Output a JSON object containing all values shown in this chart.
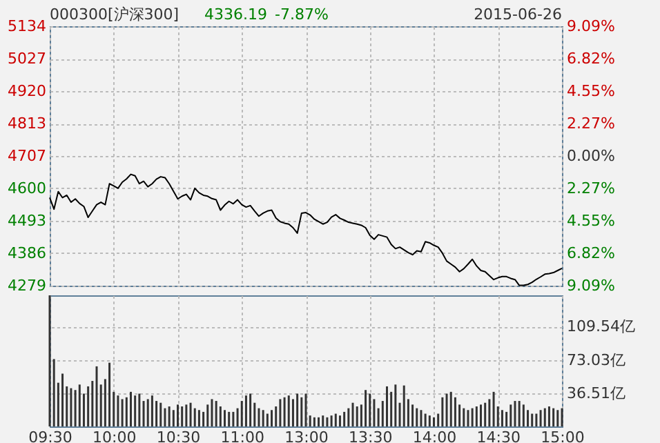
{
  "chart_data": [
    {
      "type": "line",
      "title": "000300[沪深300]",
      "annotations": [
        "4336.19",
        "-7.87%",
        "2015-06-26"
      ],
      "categories": [
        null,
        null,
        null,
        null,
        null,
        null,
        null,
        null,
        null,
        null,
        null,
        null,
        null,
        null,
        null,
        null,
        null,
        null,
        null,
        null,
        null,
        null,
        null,
        null,
        null,
        null,
        null,
        null,
        null,
        null,
        null,
        null,
        null,
        null,
        null,
        null,
        null,
        null,
        null,
        null,
        null,
        null,
        null,
        null,
        null,
        null,
        null,
        null,
        null,
        null,
        null,
        null,
        null,
        null,
        null,
        null,
        null,
        null,
        null,
        null,
        null,
        null,
        null,
        null,
        null,
        null,
        null,
        null,
        null,
        null,
        null,
        null,
        null,
        null,
        null,
        null,
        null,
        null,
        null,
        null,
        null,
        null,
        null,
        null,
        null,
        null,
        null,
        null,
        null,
        null,
        null,
        null,
        null,
        null,
        null,
        null,
        null,
        null,
        null,
        null,
        null,
        null,
        null,
        null,
        null,
        null,
        null,
        null,
        null,
        null,
        null,
        null,
        null,
        null,
        null,
        null,
        null,
        null,
        null,
        null,
        null
      ],
      "series": [
        {
          "color": "#000000",
          "values": [
            4569,
            4531,
            4589,
            4569,
            4577,
            4554,
            4565,
            4550,
            4540,
            4504,
            4525,
            4546,
            4554,
            4546,
            4615,
            4608,
            4600,
            4620,
            4631,
            4646,
            4641,
            4615,
            4623,
            4605,
            4615,
            4630,
            4638,
            4635,
            4615,
            4590,
            4565,
            4574,
            4580,
            4562,
            4600,
            4585,
            4577,
            4574,
            4566,
            4562,
            4528,
            4545,
            4557,
            4549,
            4562,
            4546,
            4538,
            4543,
            4525,
            4508,
            4518,
            4525,
            4528,
            4502,
            4490,
            4485,
            4482,
            4470,
            4452,
            4518,
            4520,
            4512,
            4498,
            4490,
            4482,
            4488,
            4505,
            4513,
            4501,
            4495,
            4488,
            4485,
            4482,
            4478,
            4470,
            4445,
            4432,
            4447,
            4443,
            4439,
            4415,
            4401,
            4406,
            4397,
            4388,
            4381,
            4394,
            4391,
            4424,
            4420,
            4412,
            4406,
            4386,
            4360,
            4350,
            4340,
            4325,
            4335,
            4350,
            4366,
            4344,
            4329,
            4325,
            4312,
            4299,
            4305,
            4309,
            4309,
            4303,
            4299,
            4280,
            4280,
            4283,
            4290,
            4300,
            4308,
            4317,
            4319,
            4322,
            4329,
            4336
          ]
        }
      ],
      "ylim": [
        4279,
        5134
      ],
      "yticks": [
        4279,
        4386,
        4493,
        4600,
        4707,
        4813,
        4920,
        5027,
        5134
      ],
      "y2lim": [
        -9.09,
        9.09
      ],
      "y2ticks": [
        {
          "value": -9.09,
          "label": "9.09%"
        },
        {
          "value": -6.82,
          "label": "6.82%"
        },
        {
          "value": -4.55,
          "label": "4.55%"
        },
        {
          "value": -2.27,
          "label": "2.27%"
        },
        {
          "value": 0,
          "label": "0.00%"
        },
        {
          "value": 2.27,
          "label": "2.27%"
        },
        {
          "value": 4.55,
          "label": "4.55%"
        },
        {
          "value": 6.82,
          "label": "6.82%"
        },
        {
          "value": 9.09,
          "label": "9.09%"
        }
      ],
      "grid": true,
      "tick_labels": "y"
    },
    {
      "type": "bar",
      "categories": [
        "09:30",
        null,
        null,
        null,
        null,
        null,
        null,
        null,
        null,
        null,
        null,
        null,
        null,
        null,
        null,
        "10:00",
        null,
        null,
        null,
        null,
        null,
        null,
        null,
        null,
        null,
        null,
        null,
        null,
        null,
        null,
        "10:30",
        null,
        null,
        null,
        null,
        null,
        null,
        null,
        null,
        null,
        null,
        null,
        null,
        null,
        null,
        "11:00",
        null,
        null,
        null,
        null,
        null,
        null,
        null,
        null,
        null,
        null,
        null,
        null,
        null,
        null,
        "13:00",
        null,
        null,
        null,
        null,
        null,
        null,
        null,
        null,
        null,
        null,
        null,
        null,
        null,
        null,
        "13:30",
        null,
        null,
        null,
        null,
        null,
        null,
        null,
        null,
        null,
        null,
        null,
        null,
        null,
        null,
        "14:00",
        null,
        null,
        null,
        null,
        null,
        null,
        null,
        null,
        null,
        null,
        null,
        null,
        null,
        null,
        "14:30",
        null,
        null,
        null,
        null,
        null,
        null,
        null,
        null,
        null,
        null,
        null,
        null,
        null,
        null,
        "15:00"
      ],
      "series": [
        {
          "color": "#333333",
          "axis": "y2",
          "values": [
            144,
            74,
            48,
            58,
            44,
            42,
            40,
            46,
            36,
            44,
            50,
            66,
            46,
            52,
            70,
            38,
            34,
            30,
            32,
            38,
            34,
            36,
            28,
            30,
            34,
            28,
            26,
            20,
            22,
            18,
            24,
            22,
            24,
            26,
            20,
            18,
            16,
            24,
            30,
            28,
            22,
            18,
            16,
            16,
            20,
            28,
            34,
            36,
            26,
            20,
            18,
            14,
            18,
            22,
            30,
            32,
            34,
            30,
            36,
            32,
            36,
            12,
            10,
            10,
            12,
            10,
            12,
            14,
            12,
            16,
            20,
            26,
            22,
            24,
            40,
            36,
            30,
            20,
            28,
            44,
            38,
            46,
            26,
            45,
            30,
            24,
            20,
            18,
            14,
            12,
            10,
            14,
            32,
            36,
            38,
            32,
            24,
            20,
            18,
            20,
            22,
            24,
            26,
            30,
            38,
            22,
            18,
            16,
            24,
            28,
            28,
            24,
            18,
            14,
            14,
            18,
            20,
            22,
            20,
            18,
            20
          ]
        }
      ],
      "y2lim": [
        0,
        144
      ],
      "y2ticks": [
        {
          "value": 36.51,
          "label": "36.51亿"
        },
        {
          "value": 73.03,
          "label": "73.03亿"
        },
        {
          "value": 109.54,
          "label": "109.54亿"
        }
      ],
      "grid": true
    }
  ]
}
